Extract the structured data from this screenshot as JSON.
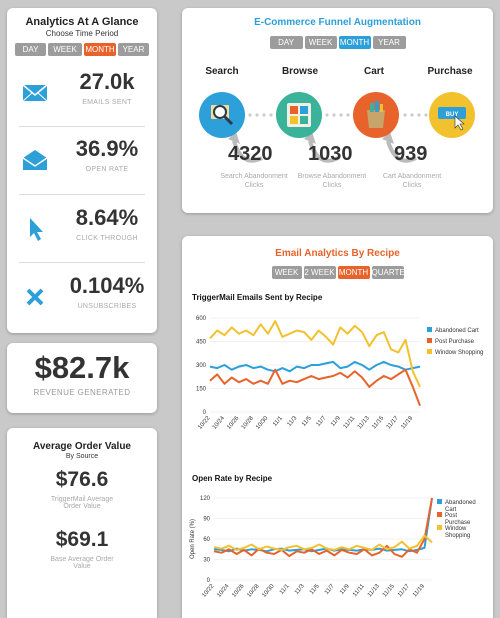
{
  "glance": {
    "title": "Analytics At A Glance",
    "subtitle": "Choose Time Period",
    "periods": [
      "DAY",
      "WEEK",
      "MONTH",
      "YEAR"
    ],
    "active_period": "MONTH",
    "stats": [
      {
        "icon": "envelope-icon",
        "value": "27.0k",
        "label": "EMAILS SENT"
      },
      {
        "icon": "open-envelope-icon",
        "value": "36.9%",
        "label": "OPEN RATE"
      },
      {
        "icon": "cursor-icon",
        "value": "8.64%",
        "label": "CLICK THROUGH"
      },
      {
        "icon": "x-icon",
        "value": "0.104%",
        "label": "UNSUBSCRIBES"
      }
    ]
  },
  "revenue": {
    "value": "$82.7k",
    "label": "REVENUE GENERATED"
  },
  "aov": {
    "title": "Average Order Value",
    "subtitle": "By Source",
    "items": [
      {
        "value": "$76.6",
        "label_line1": "TriggerMail Average",
        "label_line2": "Order Value"
      },
      {
        "value": "$69.1",
        "label_line1": "Base Average Order",
        "label_line2": "Value"
      }
    ]
  },
  "funnel": {
    "title": "E-Commerce Funnel Augmentation",
    "periods": [
      "DAY",
      "WEEK",
      "MONTH",
      "YEAR"
    ],
    "active_period": "MONTH",
    "steps": [
      {
        "label": "Search",
        "icon": "magnifier-icon",
        "color": "#2d9fd9"
      },
      {
        "label": "Browse",
        "icon": "browse-grid-icon",
        "color": "#3bb39b"
      },
      {
        "label": "Cart",
        "icon": "shopping-bag-icon",
        "color": "#e8632b"
      },
      {
        "label": "Purchase",
        "icon": "buy-button-icon",
        "color": "#f2c12e"
      }
    ],
    "abandonment": [
      {
        "value": "4320",
        "line1": "Search Abandonment",
        "line2": "Clicks"
      },
      {
        "value": "1030",
        "line1": "Browse Abandonment",
        "line2": "Clicks"
      },
      {
        "value": "939",
        "line1": "Cart Abandonment",
        "line2": "Clicks"
      }
    ]
  },
  "recipe": {
    "title": "Email Analytics By Recipe",
    "periods": [
      "WEEK",
      "2 WEEK",
      "MONTH",
      "QUARTER"
    ],
    "active_period": "MONTH"
  },
  "colors": {
    "blue": "#2d9fd9",
    "orange": "#e8632b",
    "yellow": "#f2c12e",
    "gray": "#9c9c9c"
  },
  "chart_data": [
    {
      "type": "line",
      "title": "TriggerMail Emails Sent by Recipe",
      "ylim": [
        0,
        600
      ],
      "yticks": [
        0,
        150,
        300,
        450,
        600
      ],
      "x": [
        "10/22",
        "10/23",
        "10/24",
        "10/25",
        "10/26",
        "10/27",
        "10/28",
        "10/29",
        "10/30",
        "10/31",
        "11/1",
        "11/2",
        "11/3",
        "11/4",
        "11/5",
        "11/6",
        "11/7",
        "11/8",
        "11/9",
        "11/10",
        "11/11",
        "11/12",
        "11/13",
        "11/14",
        "11/15",
        "11/16",
        "11/17",
        "11/18",
        "11/19",
        "11/20"
      ],
      "xticks": [
        "10/22",
        "10/24",
        "10/26",
        "10/28",
        "10/30",
        "11/1",
        "11/3",
        "11/5",
        "11/7",
        "11/9",
        "11/11",
        "11/13",
        "11/15",
        "11/17",
        "11/19"
      ],
      "series": [
        {
          "name": "Abandoned Cart",
          "color": "#2d9fd9",
          "values": [
            290,
            280,
            300,
            270,
            290,
            300,
            280,
            290,
            270,
            260,
            280,
            260,
            290,
            280,
            300,
            300,
            310,
            320,
            280,
            290,
            320,
            300,
            270,
            300,
            320,
            300,
            290,
            270,
            280,
            290
          ]
        },
        {
          "name": "Post Purchase",
          "color": "#e8632b",
          "values": [
            200,
            240,
            180,
            220,
            190,
            210,
            180,
            200,
            180,
            270,
            180,
            200,
            190,
            210,
            230,
            210,
            220,
            230,
            250,
            220,
            260,
            220,
            160,
            200,
            230,
            210,
            240,
            270,
            160,
            40
          ]
        },
        {
          "name": "Window Shopping",
          "color": "#f2c12e",
          "values": [
            470,
            520,
            490,
            540,
            500,
            520,
            490,
            560,
            500,
            580,
            480,
            500,
            520,
            510,
            460,
            520,
            480,
            430,
            540,
            500,
            550,
            510,
            420,
            490,
            510,
            400,
            380,
            460,
            260,
            160
          ]
        }
      ]
    },
    {
      "type": "line",
      "title": "Open Rate by Recipe",
      "ylabel": "Open Rate (%)",
      "ylim": [
        0,
        120
      ],
      "yticks": [
        0,
        30,
        60,
        90,
        120
      ],
      "x": [
        "10/22",
        "10/23",
        "10/24",
        "10/25",
        "10/26",
        "10/27",
        "10/28",
        "10/29",
        "10/30",
        "10/31",
        "11/1",
        "11/2",
        "11/3",
        "11/4",
        "11/5",
        "11/6",
        "11/7",
        "11/8",
        "11/9",
        "11/10",
        "11/11",
        "11/12",
        "11/13",
        "11/14",
        "11/15",
        "11/16",
        "11/17",
        "11/18",
        "11/19",
        "11/20"
      ],
      "xticks": [
        "10/22",
        "10/24",
        "10/26",
        "10/28",
        "10/30",
        "11/1",
        "11/3",
        "11/5",
        "11/7",
        "11/9",
        "11/11",
        "11/13",
        "11/15",
        "11/17",
        "11/19"
      ],
      "series": [
        {
          "name": "Abandoned Cart",
          "color": "#2d9fd9",
          "values": [
            45,
            44,
            42,
            46,
            43,
            45,
            44,
            42,
            45,
            46,
            43,
            44,
            45,
            42,
            44,
            46,
            43,
            45,
            44,
            43,
            45,
            44,
            46,
            43,
            44,
            45,
            42,
            44,
            47,
            120
          ]
        },
        {
          "name": "Post Purchase",
          "color": "#e8632b",
          "values": [
            42,
            40,
            45,
            38,
            44,
            36,
            46,
            40,
            38,
            44,
            35,
            42,
            40,
            45,
            38,
            43,
            36,
            44,
            40,
            38,
            45,
            36,
            40,
            50,
            38,
            34,
            45,
            40,
            60,
            120
          ]
        },
        {
          "name": "Window Shopping",
          "color": "#f2c12e",
          "values": [
            48,
            46,
            50,
            44,
            47,
            52,
            45,
            49,
            46,
            44,
            48,
            50,
            45,
            47,
            52,
            46,
            44,
            48,
            45,
            50,
            47,
            44,
            52,
            45,
            48,
            56,
            46,
            50,
            65,
            55
          ]
        }
      ]
    }
  ]
}
